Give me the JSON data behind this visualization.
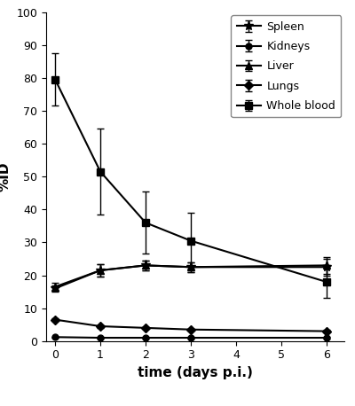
{
  "title": "",
  "xlabel": "time (days p.i.)",
  "ylabel": "%ID",
  "xlim": [
    -0.2,
    6.4
  ],
  "ylim": [
    0,
    100
  ],
  "yticks": [
    0,
    10,
    20,
    30,
    40,
    50,
    60,
    70,
    80,
    90,
    100
  ],
  "xticks": [
    0,
    1,
    2,
    3,
    4,
    5,
    6
  ],
  "series": {
    "Spleen": {
      "x": [
        0,
        1,
        2,
        3,
        6
      ],
      "y": [
        16.0,
        21.5,
        23.0,
        22.5,
        22.5
      ],
      "yerr": [
        1.0,
        2.0,
        1.5,
        1.5,
        2.5
      ],
      "marker": "*",
      "markersize": 8,
      "linewidth": 1.5,
      "color": "#000000"
    },
    "Kidneys": {
      "x": [
        0,
        1,
        2,
        3,
        6
      ],
      "y": [
        1.2,
        1.0,
        1.0,
        1.0,
        1.0
      ],
      "yerr": [
        0.15,
        0.15,
        0.15,
        0.15,
        0.15
      ],
      "marker": "o",
      "markersize": 5,
      "linewidth": 1.5,
      "color": "#000000"
    },
    "Liver": {
      "x": [
        0,
        1,
        2,
        3,
        6
      ],
      "y": [
        16.5,
        21.5,
        23.0,
        22.5,
        23.0
      ],
      "yerr": [
        1.2,
        2.0,
        1.5,
        1.5,
        2.5
      ],
      "marker": "^",
      "markersize": 6,
      "linewidth": 1.5,
      "color": "#000000"
    },
    "Lungs": {
      "x": [
        0,
        1,
        2,
        3,
        6
      ],
      "y": [
        6.5,
        4.5,
        4.0,
        3.5,
        3.0
      ],
      "yerr": [
        0.4,
        0.4,
        0.3,
        0.3,
        0.4
      ],
      "marker": "D",
      "markersize": 5,
      "linewidth": 1.5,
      "color": "#000000"
    },
    "Whole blood": {
      "x": [
        0,
        1,
        2,
        3,
        6
      ],
      "y": [
        79.5,
        51.5,
        36.0,
        30.5,
        18.0
      ],
      "yerr": [
        8.0,
        13.0,
        9.5,
        8.5,
        5.0
      ],
      "marker": "s",
      "markersize": 6,
      "linewidth": 1.5,
      "color": "#000000"
    }
  },
  "legend_order": [
    "Spleen",
    "Kidneys",
    "Liver",
    "Lungs",
    "Whole blood"
  ],
  "background_color": "#ffffff",
  "capsize": 3,
  "elinewidth": 1.0,
  "figsize": [
    4.0,
    4.58
  ],
  "dpi": 100
}
